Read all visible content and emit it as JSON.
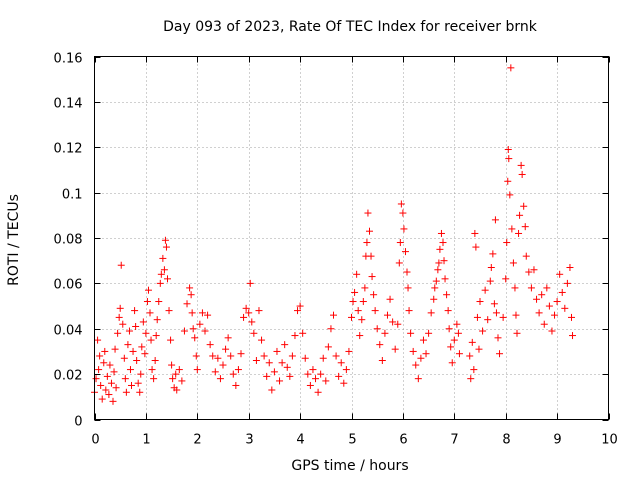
{
  "chart_data": {
    "type": "scatter",
    "title": "Day 093 of 2023, Rate Of TEC Index for receiver brnk",
    "xlabel": "GPS time / hours",
    "ylabel": "ROTI / TECUs",
    "xlim": [
      0,
      10
    ],
    "ylim": [
      0,
      0.16
    ],
    "xticks": [
      0,
      1,
      2,
      3,
      4,
      5,
      6,
      7,
      8,
      9,
      10
    ],
    "xtick_labels": [
      "0",
      "1",
      "2",
      "3",
      "4",
      "5",
      "6",
      "7",
      "8",
      "9",
      "10"
    ],
    "yticks": [
      0,
      0.02,
      0.04,
      0.06,
      0.08,
      0.1,
      0.12,
      0.14,
      0.16
    ],
    "ytick_labels": [
      "0",
      "0.02",
      "0.04",
      "0.06",
      "0.08",
      "0.1",
      "0.12",
      "0.14",
      "0.16"
    ],
    "grid": true,
    "marker": "+",
    "marker_color": "#ff0000",
    "series": [
      {
        "name": "ROTI",
        "points": [
          [
            0.0,
            0.012
          ],
          [
            0.03,
            0.018
          ],
          [
            0.06,
            0.035
          ],
          [
            0.08,
            0.022
          ],
          [
            0.1,
            0.028
          ],
          [
            0.12,
            0.015
          ],
          [
            0.15,
            0.009
          ],
          [
            0.18,
            0.025
          ],
          [
            0.2,
            0.03
          ],
          [
            0.22,
            0.013
          ],
          [
            0.25,
            0.019
          ],
          [
            0.28,
            0.011
          ],
          [
            0.3,
            0.024
          ],
          [
            0.33,
            0.016
          ],
          [
            0.36,
            0.008
          ],
          [
            0.38,
            0.021
          ],
          [
            0.4,
            0.031
          ],
          [
            0.42,
            0.014
          ],
          [
            0.45,
            0.038
          ],
          [
            0.48,
            0.045
          ],
          [
            0.5,
            0.049
          ],
          [
            0.52,
            0.068
          ],
          [
            0.55,
            0.042
          ],
          [
            0.58,
            0.027
          ],
          [
            0.6,
            0.018
          ],
          [
            0.62,
            0.012
          ],
          [
            0.65,
            0.033
          ],
          [
            0.68,
            0.039
          ],
          [
            0.7,
            0.022
          ],
          [
            0.72,
            0.015
          ],
          [
            0.75,
            0.03
          ],
          [
            0.78,
            0.048
          ],
          [
            0.8,
            0.041
          ],
          [
            0.82,
            0.026
          ],
          [
            0.85,
            0.016
          ],
          [
            0.88,
            0.012
          ],
          [
            0.9,
            0.02
          ],
          [
            0.92,
            0.032
          ],
          [
            0.95,
            0.043
          ],
          [
            0.98,
            0.029
          ],
          [
            1.0,
            0.038
          ],
          [
            1.03,
            0.052
          ],
          [
            1.05,
            0.057
          ],
          [
            1.08,
            0.047
          ],
          [
            1.1,
            0.035
          ],
          [
            1.12,
            0.022
          ],
          [
            1.15,
            0.018
          ],
          [
            1.18,
            0.026
          ],
          [
            1.2,
            0.037
          ],
          [
            1.22,
            0.044
          ],
          [
            1.25,
            0.052
          ],
          [
            1.28,
            0.06
          ],
          [
            1.3,
            0.064
          ],
          [
            1.33,
            0.071
          ],
          [
            1.36,
            0.066
          ],
          [
            1.38,
            0.079
          ],
          [
            1.4,
            0.076
          ],
          [
            1.42,
            0.062
          ],
          [
            1.45,
            0.048
          ],
          [
            1.48,
            0.035
          ],
          [
            1.5,
            0.024
          ],
          [
            1.52,
            0.018
          ],
          [
            1.55,
            0.014
          ],
          [
            1.58,
            0.02
          ],
          [
            1.6,
            0.013
          ],
          [
            1.65,
            0.022
          ],
          [
            1.7,
            0.017
          ],
          [
            1.75,
            0.039
          ],
          [
            1.8,
            0.051
          ],
          [
            1.85,
            0.058
          ],
          [
            1.88,
            0.055
          ],
          [
            1.9,
            0.047
          ],
          [
            1.92,
            0.04
          ],
          [
            1.95,
            0.036
          ],
          [
            1.98,
            0.028
          ],
          [
            2.0,
            0.022
          ],
          [
            2.05,
            0.042
          ],
          [
            2.1,
            0.047
          ],
          [
            2.15,
            0.039
          ],
          [
            2.2,
            0.046
          ],
          [
            2.25,
            0.033
          ],
          [
            2.3,
            0.028
          ],
          [
            2.35,
            0.021
          ],
          [
            2.4,
            0.027
          ],
          [
            2.45,
            0.018
          ],
          [
            2.5,
            0.024
          ],
          [
            2.55,
            0.031
          ],
          [
            2.6,
            0.036
          ],
          [
            2.65,
            0.028
          ],
          [
            2.7,
            0.02
          ],
          [
            2.75,
            0.015
          ],
          [
            2.8,
            0.022
          ],
          [
            2.85,
            0.029
          ],
          [
            2.9,
            0.045
          ],
          [
            2.95,
            0.049
          ],
          [
            3.0,
            0.047
          ],
          [
            3.03,
            0.06
          ],
          [
            3.06,
            0.043
          ],
          [
            3.1,
            0.038
          ],
          [
            3.15,
            0.026
          ],
          [
            3.2,
            0.048
          ],
          [
            3.25,
            0.035
          ],
          [
            3.3,
            0.028
          ],
          [
            3.35,
            0.019
          ],
          [
            3.4,
            0.025
          ],
          [
            3.45,
            0.013
          ],
          [
            3.5,
            0.021
          ],
          [
            3.55,
            0.03
          ],
          [
            3.6,
            0.017
          ],
          [
            3.65,
            0.025
          ],
          [
            3.7,
            0.033
          ],
          [
            3.75,
            0.023
          ],
          [
            3.8,
            0.019
          ],
          [
            3.85,
            0.028
          ],
          [
            3.9,
            0.037
          ],
          [
            3.95,
            0.048
          ],
          [
            4.0,
            0.05
          ],
          [
            4.05,
            0.038
          ],
          [
            4.1,
            0.027
          ],
          [
            4.15,
            0.02
          ],
          [
            4.2,
            0.015
          ],
          [
            4.25,
            0.022
          ],
          [
            4.3,
            0.018
          ],
          [
            4.35,
            0.012
          ],
          [
            4.4,
            0.02
          ],
          [
            4.45,
            0.027
          ],
          [
            4.5,
            0.017
          ],
          [
            4.55,
            0.032
          ],
          [
            4.6,
            0.04
          ],
          [
            4.65,
            0.046
          ],
          [
            4.7,
            0.028
          ],
          [
            4.75,
            0.019
          ],
          [
            4.8,
            0.025
          ],
          [
            4.85,
            0.016
          ],
          [
            4.9,
            0.022
          ],
          [
            4.95,
            0.03
          ],
          [
            5.0,
            0.045
          ],
          [
            5.03,
            0.052
          ],
          [
            5.06,
            0.056
          ],
          [
            5.1,
            0.064
          ],
          [
            5.13,
            0.048
          ],
          [
            5.16,
            0.037
          ],
          [
            5.2,
            0.044
          ],
          [
            5.23,
            0.052
          ],
          [
            5.26,
            0.058
          ],
          [
            5.28,
            0.072
          ],
          [
            5.3,
            0.078
          ],
          [
            5.32,
            0.091
          ],
          [
            5.35,
            0.083
          ],
          [
            5.38,
            0.072
          ],
          [
            5.4,
            0.063
          ],
          [
            5.43,
            0.055
          ],
          [
            5.46,
            0.048
          ],
          [
            5.5,
            0.04
          ],
          [
            5.55,
            0.033
          ],
          [
            5.6,
            0.026
          ],
          [
            5.65,
            0.038
          ],
          [
            5.7,
            0.046
          ],
          [
            5.75,
            0.053
          ],
          [
            5.8,
            0.043
          ],
          [
            5.85,
            0.031
          ],
          [
            5.9,
            0.042
          ],
          [
            5.93,
            0.069
          ],
          [
            5.95,
            0.078
          ],
          [
            5.97,
            0.095
          ],
          [
            6.0,
            0.091
          ],
          [
            6.02,
            0.084
          ],
          [
            6.05,
            0.074
          ],
          [
            6.08,
            0.065
          ],
          [
            6.1,
            0.058
          ],
          [
            6.12,
            0.048
          ],
          [
            6.15,
            0.038
          ],
          [
            6.2,
            0.03
          ],
          [
            6.25,
            0.024
          ],
          [
            6.3,
            0.018
          ],
          [
            6.35,
            0.027
          ],
          [
            6.4,
            0.035
          ],
          [
            6.45,
            0.029
          ],
          [
            6.5,
            0.038
          ],
          [
            6.55,
            0.047
          ],
          [
            6.6,
            0.053
          ],
          [
            6.62,
            0.058
          ],
          [
            6.65,
            0.061
          ],
          [
            6.68,
            0.066
          ],
          [
            6.7,
            0.069
          ],
          [
            6.72,
            0.075
          ],
          [
            6.75,
            0.082
          ],
          [
            6.78,
            0.078
          ],
          [
            6.8,
            0.07
          ],
          [
            6.82,
            0.062
          ],
          [
            6.85,
            0.055
          ],
          [
            6.88,
            0.048
          ],
          [
            6.9,
            0.04
          ],
          [
            6.93,
            0.032
          ],
          [
            6.96,
            0.025
          ],
          [
            7.0,
            0.035
          ],
          [
            7.05,
            0.042
          ],
          [
            7.08,
            0.038
          ],
          [
            7.1,
            0.029
          ],
          [
            7.3,
            0.028
          ],
          [
            7.32,
            0.018
          ],
          [
            7.35,
            0.034
          ],
          [
            7.38,
            0.022
          ],
          [
            7.4,
            0.082
          ],
          [
            7.42,
            0.076
          ],
          [
            7.45,
            0.045
          ],
          [
            7.48,
            0.031
          ],
          [
            7.5,
            0.052
          ],
          [
            7.55,
            0.039
          ],
          [
            7.6,
            0.057
          ],
          [
            7.65,
            0.044
          ],
          [
            7.7,
            0.061
          ],
          [
            7.72,
            0.067
          ],
          [
            7.75,
            0.073
          ],
          [
            7.78,
            0.051
          ],
          [
            7.8,
            0.088
          ],
          [
            7.82,
            0.047
          ],
          [
            7.85,
            0.036
          ],
          [
            7.88,
            0.029
          ],
          [
            7.95,
            0.045
          ],
          [
            8.0,
            0.062
          ],
          [
            8.02,
            0.078
          ],
          [
            8.04,
            0.105
          ],
          [
            8.05,
            0.119
          ],
          [
            8.06,
            0.115
          ],
          [
            8.08,
            0.099
          ],
          [
            8.1,
            0.155
          ],
          [
            8.12,
            0.084
          ],
          [
            8.15,
            0.069
          ],
          [
            8.18,
            0.058
          ],
          [
            8.2,
            0.046
          ],
          [
            8.22,
            0.038
          ],
          [
            8.25,
            0.082
          ],
          [
            8.27,
            0.09
          ],
          [
            8.3,
            0.112
          ],
          [
            8.32,
            0.108
          ],
          [
            8.35,
            0.094
          ],
          [
            8.38,
            0.085
          ],
          [
            8.4,
            0.072
          ],
          [
            8.45,
            0.065
          ],
          [
            8.5,
            0.058
          ],
          [
            8.55,
            0.066
          ],
          [
            8.6,
            0.053
          ],
          [
            8.65,
            0.047
          ],
          [
            8.7,
            0.055
          ],
          [
            8.75,
            0.042
          ],
          [
            8.8,
            0.058
          ],
          [
            8.85,
            0.05
          ],
          [
            8.9,
            0.039
          ],
          [
            8.95,
            0.046
          ],
          [
            9.0,
            0.052
          ],
          [
            9.05,
            0.064
          ],
          [
            9.1,
            0.056
          ],
          [
            9.15,
            0.049
          ],
          [
            9.2,
            0.06
          ],
          [
            9.25,
            0.067
          ],
          [
            9.28,
            0.045
          ],
          [
            9.3,
            0.037
          ]
        ]
      }
    ]
  }
}
